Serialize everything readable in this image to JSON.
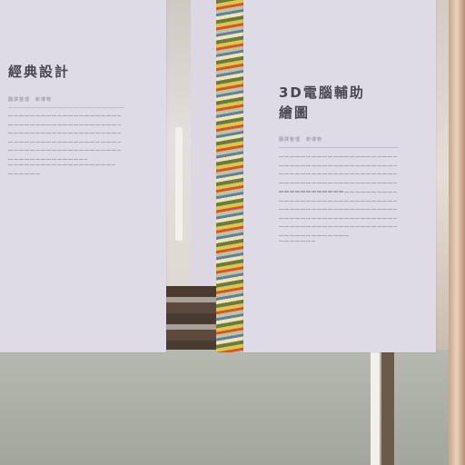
{
  "left_panel": {
    "title": "經典設計",
    "meta": "翻譯整理　新博物"
  },
  "right_panel": {
    "title_line1": "3D電腦輔助",
    "title_line2": "繪圖",
    "meta": "翻譯整理　新博物"
  },
  "colors": {
    "panel": "#dedbe6",
    "title_text": "#4a4652",
    "floor": "#aaada3",
    "column_accent": "#e2502b"
  }
}
